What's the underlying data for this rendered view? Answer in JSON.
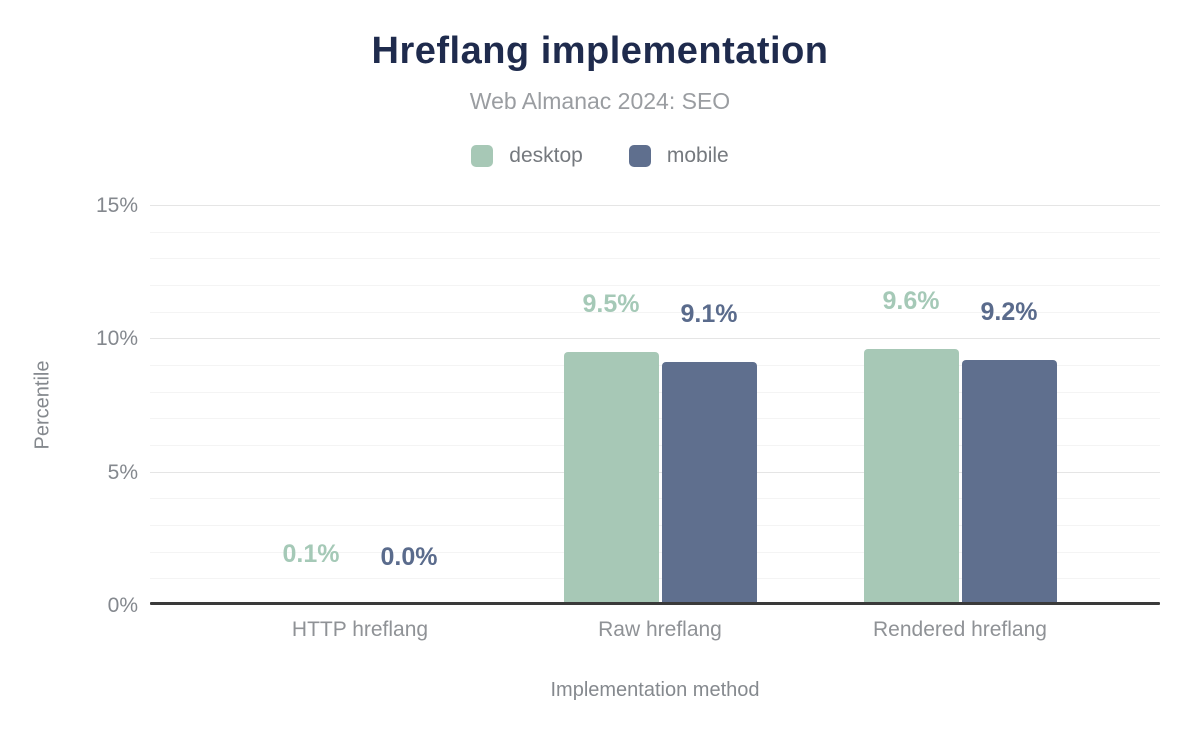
{
  "chart_data": {
    "type": "bar",
    "title": "Hreflang implementation",
    "subtitle": "Web Almanac 2024: SEO",
    "title_color": "#1f2b4d",
    "categories": [
      "HTTP hreflang",
      "Raw hreflang",
      "Rendered hreflang"
    ],
    "series": [
      {
        "name": "desktop",
        "color": "#a7c8b6",
        "label_color": "#a5c9b7",
        "values": [
          0.1,
          9.5,
          9.6
        ],
        "value_labels": [
          "0.1%",
          "9.5%",
          "9.6%"
        ]
      },
      {
        "name": "mobile",
        "color": "#5f6f8e",
        "label_color": "#5a6b8c",
        "values": [
          0.0,
          9.1,
          9.2
        ],
        "value_labels": [
          "0.0%",
          "9.1%",
          "9.2%"
        ]
      }
    ],
    "xlabel": "Implementation method",
    "ylabel": "Percentile",
    "ylim": [
      0,
      15
    ],
    "ytick_major_step": 5,
    "ytick_minor_step": 1,
    "ytick_labels": [
      "0%",
      "5%",
      "10%",
      "15%"
    ],
    "legend_position": "top",
    "grid": true
  }
}
